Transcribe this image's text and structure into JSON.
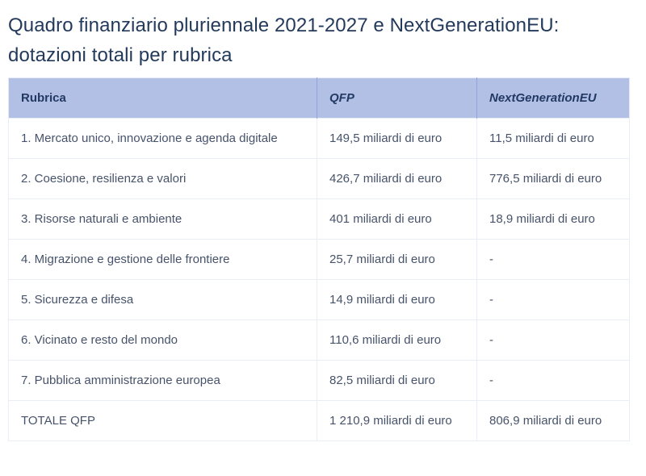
{
  "page": {
    "title": "Quadro finanziario pluriennale 2021-2027 e NextGenerationEU: dotazioni totali per rubrica"
  },
  "table": {
    "headers": {
      "rubrica": "Rubrica",
      "qfp": "QFP",
      "ngeu": "NextGenerationEU"
    },
    "rows": [
      {
        "rubrica": "1. Mercato unico, innovazione e agenda digitale",
        "qfp": "149,5 miliardi di euro",
        "ngeu": "11,5 miliardi di euro"
      },
      {
        "rubrica": "2. Coesione, resilienza e valori",
        "qfp": "426,7 miliardi di euro",
        "ngeu": "776,5 miliardi di euro"
      },
      {
        "rubrica": "3. Risorse naturali e ambiente",
        "qfp": "401 miliardi di euro",
        "ngeu": "18,9 miliardi di euro"
      },
      {
        "rubrica": "4. Migrazione e gestione delle frontiere",
        "qfp": "25,7 miliardi di euro",
        "ngeu": "-"
      },
      {
        "rubrica": "5. Sicurezza e difesa",
        "qfp": "14,9 miliardi di euro",
        "ngeu": "-"
      },
      {
        "rubrica": "6. Vicinato e resto del mondo",
        "qfp": "110,6 miliardi di euro",
        "ngeu": "-"
      },
      {
        "rubrica": "7. Pubblica amministrazione europea",
        "qfp": "82,5 miliardi di euro",
        "ngeu": "-"
      },
      {
        "rubrica": "TOTALE QFP",
        "qfp": "1 210,9 miliardi di euro",
        "ngeu": "806,9 miliardi di euro"
      }
    ]
  },
  "colors": {
    "title_text": "#233a5c",
    "header_bg": "#b3c0e5",
    "header_text": "#223a63",
    "header_divider": "#92a4d8",
    "body_text": "#47536a",
    "row_border": "#e9edf6",
    "background": "#ffffff"
  },
  "chart_data": {
    "type": "table",
    "title": "Quadro finanziario pluriennale 2021-2027 e NextGenerationEU: dotazioni totali per rubrica",
    "columns": [
      "Rubrica",
      "QFP",
      "NextGenerationEU"
    ],
    "categories": [
      "1. Mercato unico, innovazione e agenda digitale",
      "2. Coesione, resilienza e valori",
      "3. Risorse naturali e ambiente",
      "4. Migrazione e gestione delle frontiere",
      "5. Sicurezza e difesa",
      "6. Vicinato e resto del mondo",
      "7. Pubblica amministrazione europea",
      "TOTALE QFP"
    ],
    "series": [
      {
        "name": "QFP",
        "unit": "miliardi di euro",
        "values": [
          149.5,
          426.7,
          401,
          25.7,
          14.9,
          110.6,
          82.5,
          1210.9
        ]
      },
      {
        "name": "NextGenerationEU",
        "unit": "miliardi di euro",
        "values": [
          11.5,
          776.5,
          18.9,
          null,
          null,
          null,
          null,
          806.9
        ]
      }
    ]
  }
}
